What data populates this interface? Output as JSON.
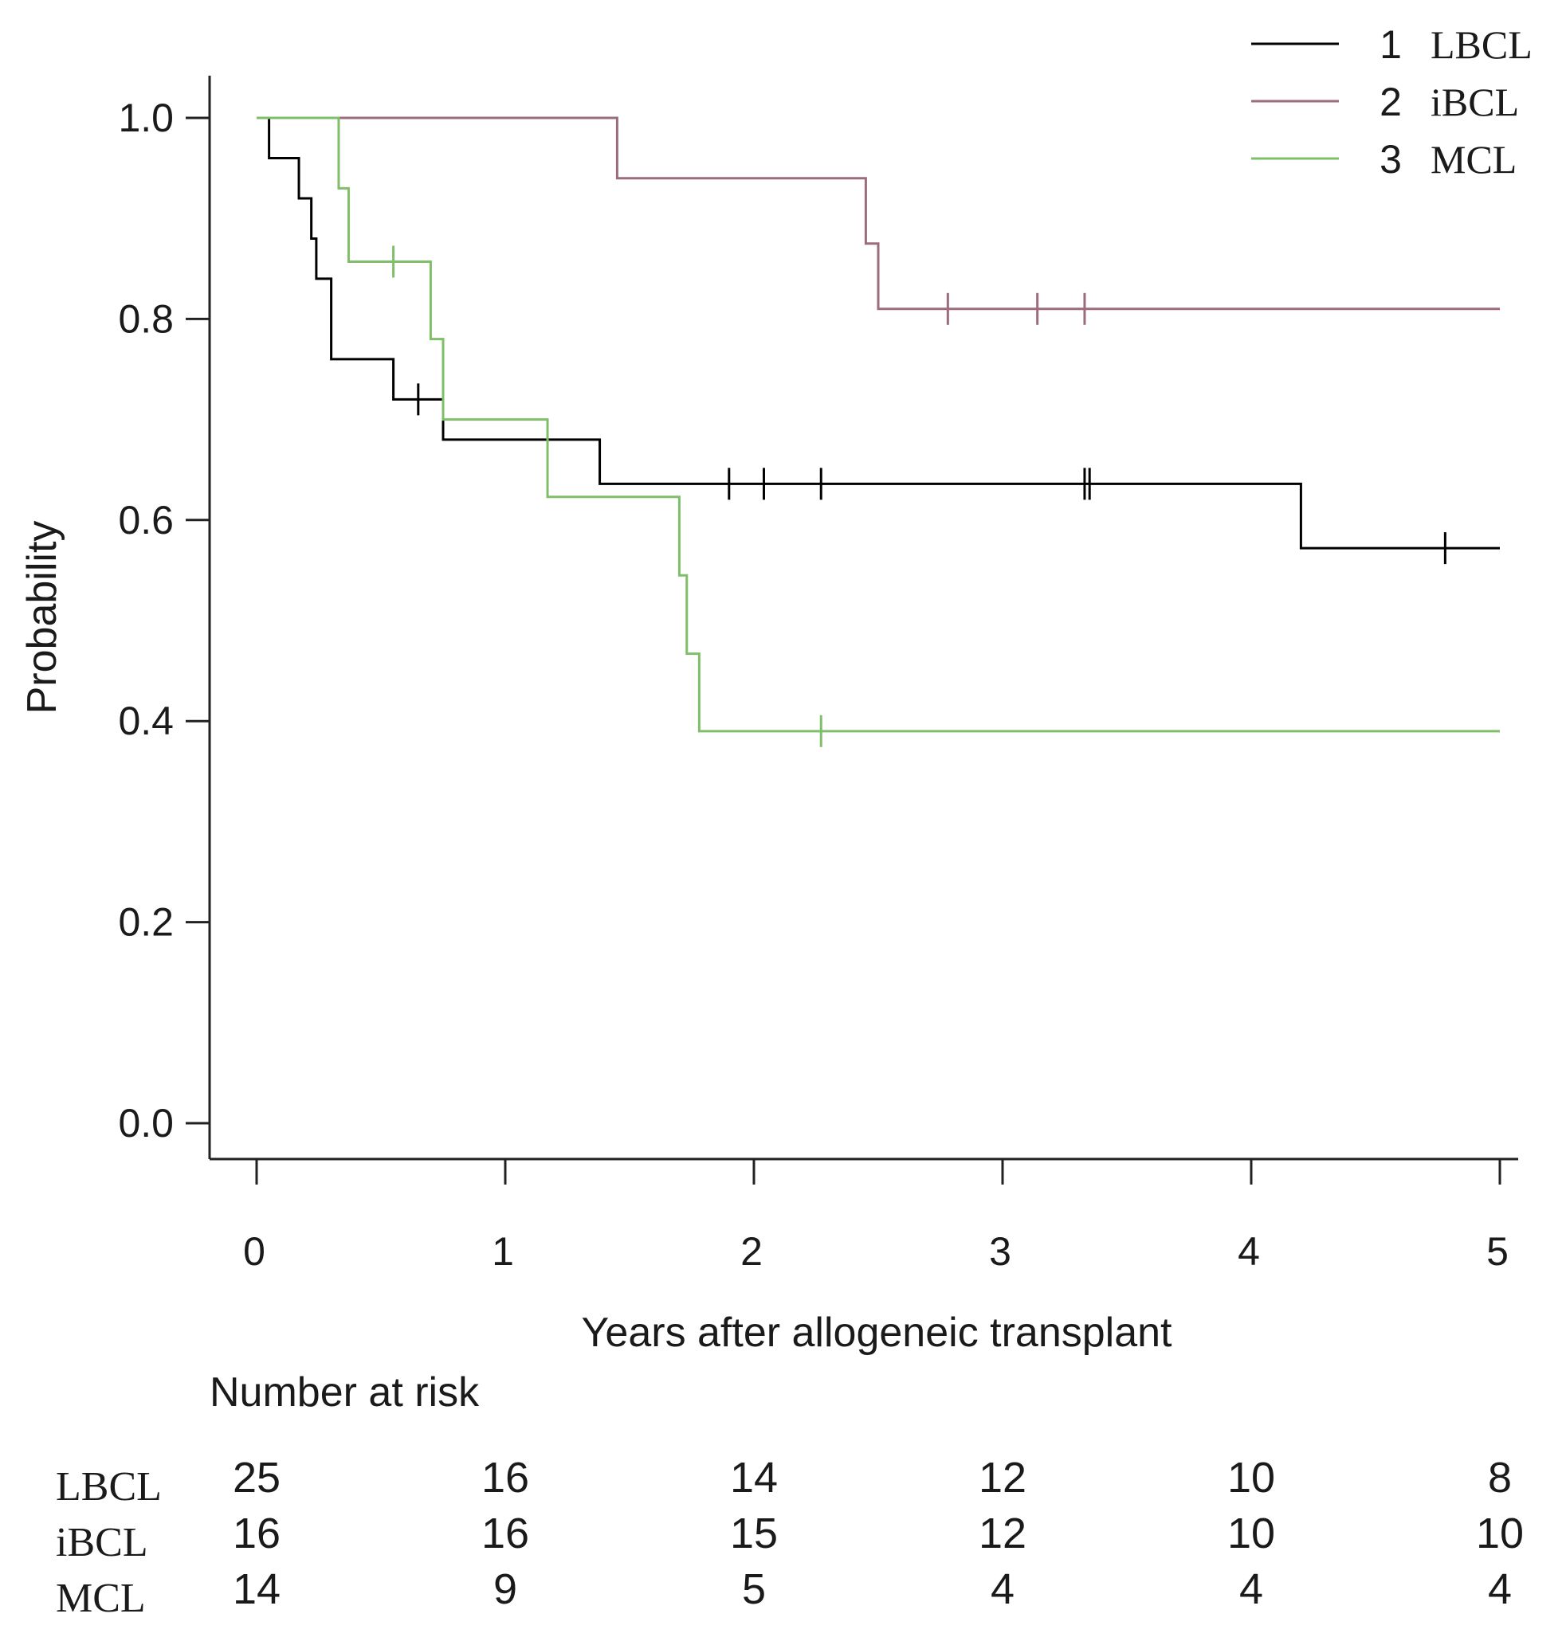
{
  "chart_data": {
    "type": "line",
    "subtype": "kaplan-meier step curves",
    "ylabel": "Probability",
    "xlabel": "Years after allogeneic transplant",
    "xlim": [
      0,
      5
    ],
    "ylim": [
      0,
      1
    ],
    "x_ticks": [
      0,
      1,
      2,
      3,
      4,
      5
    ],
    "x_tick_labels": [
      "0",
      "1",
      "2",
      "3",
      "4",
      "5"
    ],
    "y_ticks": [
      0.0,
      0.2,
      0.4,
      0.6,
      0.8,
      1.0
    ],
    "y_tick_labels": [
      "0.0",
      "0.2",
      "0.4",
      "0.6",
      "0.8",
      "1.0"
    ],
    "legend_position": "top-right",
    "legend": [
      {
        "number": "1",
        "label": "LBCL"
      },
      {
        "number": "2",
        "label": "iBCL"
      },
      {
        "number": "3",
        "label": "MCL"
      }
    ],
    "series": [
      {
        "name": "LBCL",
        "color": "#000000",
        "steps": [
          [
            0,
            1.0
          ],
          [
            0.05,
            0.96
          ],
          [
            0.17,
            0.92
          ],
          [
            0.22,
            0.88
          ],
          [
            0.24,
            0.84
          ],
          [
            0.3,
            0.76
          ],
          [
            0.55,
            0.72
          ],
          [
            0.75,
            0.68
          ],
          [
            1.38,
            0.636
          ],
          [
            4.2,
            0.572
          ]
        ],
        "end_x": 5,
        "censor_ticks": [
          0.65,
          1.9,
          2.04,
          2.27,
          3.33,
          3.35,
          4.78
        ]
      },
      {
        "name": "iBCL",
        "color": "#9b6b7e",
        "steps": [
          [
            0,
            1.0
          ],
          [
            1.45,
            0.94
          ],
          [
            2.45,
            0.875
          ],
          [
            2.5,
            0.81
          ]
        ],
        "end_x": 5,
        "censor_ticks": [
          2.78,
          3.14,
          3.33
        ]
      },
      {
        "name": "MCL",
        "color": "#7fbf6a",
        "steps": [
          [
            0,
            1.0
          ],
          [
            0.33,
            0.93
          ],
          [
            0.37,
            0.857
          ],
          [
            0.7,
            0.78
          ],
          [
            0.75,
            0.7
          ],
          [
            1.17,
            0.623
          ],
          [
            1.7,
            0.545
          ],
          [
            1.73,
            0.467
          ],
          [
            1.78,
            0.39
          ]
        ],
        "end_x": 5,
        "censor_ticks": [
          0.55,
          2.27
        ]
      }
    ],
    "number_at_risk": {
      "title": "Number at risk",
      "times": [
        0,
        1,
        2,
        3,
        4,
        5
      ],
      "rows": [
        {
          "label": "LBCL",
          "values": [
            "25",
            "16",
            "14",
            "12",
            "10",
            "8"
          ]
        },
        {
          "label": "iBCL",
          "values": [
            "16",
            "16",
            "15",
            "12",
            "10",
            "10"
          ]
        },
        {
          "label": "MCL",
          "values": [
            "14",
            "9",
            "5",
            "4",
            "4",
            "4"
          ]
        }
      ]
    }
  }
}
